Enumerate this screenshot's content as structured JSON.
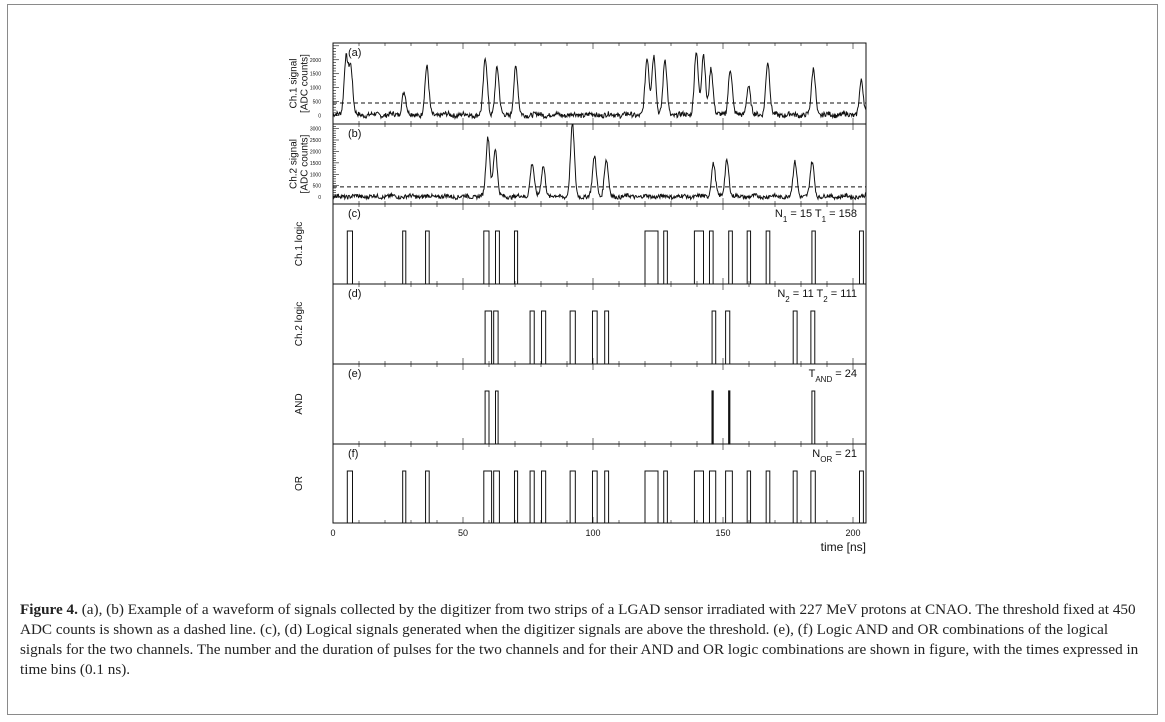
{
  "caption": {
    "label": "Figure 4.",
    "text": " (a), (b) Example of a waveform of signals collected by the digitizer from two strips of a LGAD sensor irradiated with 227 MeV protons at CNAO. The threshold fixed at 450 ADC counts is shown as a dashed line. (c), (d) Logical signals generated when the digitizer signals are above the threshold. (e), (f) Logic AND and OR combinations of the logical signals for the two channels. The number and the duration of pulses for the two channels and for their AND and OR logic combinations are shown in figure, with the times expressed in time bins (0.1 ns)."
  },
  "chart_data": {
    "type": "line",
    "xlabel": "time [ns]",
    "xlim": [
      0,
      205
    ],
    "x_ticks": [
      0,
      50,
      100,
      150,
      200
    ],
    "threshold": 450,
    "panels": [
      {
        "id": "a",
        "tag": "(a)",
        "kind": "waveform",
        "ylabel": [
          "Ch.1 signal",
          "[ADC counts]"
        ],
        "ylim": [
          -300,
          2600
        ],
        "y_ticks": [
          0,
          500,
          1000,
          1500,
          2000
        ],
        "baseline": 30,
        "peaks": [
          [
            5,
            2050
          ],
          [
            6.8,
            1700
          ],
          [
            27.3,
            850
          ],
          [
            36.1,
            1700
          ],
          [
            58.6,
            2000
          ],
          [
            63.1,
            1700
          ],
          [
            70.3,
            1700
          ],
          [
            120.8,
            2000
          ],
          [
            123.4,
            2150
          ],
          [
            127.7,
            1950
          ],
          [
            139.7,
            2250
          ],
          [
            142.5,
            2150
          ],
          [
            145.4,
            1700
          ],
          [
            152.8,
            1650
          ],
          [
            159.8,
            1050
          ],
          [
            167.2,
            1900
          ],
          [
            184.8,
            1650
          ],
          [
            203.2,
            1200
          ]
        ]
      },
      {
        "id": "b",
        "tag": "(b)",
        "kind": "waveform",
        "ylabel": [
          "Ch.2 signal",
          "[ADC counts]"
        ],
        "ylim": [
          -300,
          3200
        ],
        "y_ticks": [
          0,
          500,
          1000,
          1500,
          2000,
          2500,
          3000
        ],
        "baseline": 30,
        "peaks": [
          [
            59.6,
            2600
          ],
          [
            62.4,
            2100
          ],
          [
            76.6,
            1450
          ],
          [
            80.9,
            1350
          ],
          [
            92.1,
            3150
          ],
          [
            100.6,
            1750
          ],
          [
            105.1,
            1600
          ],
          [
            146.3,
            1450
          ],
          [
            151.5,
            1600
          ],
          [
            177.7,
            1500
          ],
          [
            184.3,
            1500
          ]
        ]
      },
      {
        "id": "c",
        "tag": "(c)",
        "kind": "logic",
        "ylabel": [
          "Ch.1 logic"
        ],
        "annotation": [
          "N",
          "1",
          " = 15   T",
          "1",
          " = 158"
        ],
        "pulses": [
          [
            5.5,
            7.5
          ],
          [
            26.8,
            28.0
          ],
          [
            35.6,
            37.0
          ],
          [
            58.0,
            60.0
          ],
          [
            62.5,
            64.0
          ],
          [
            69.8,
            71.0
          ],
          [
            120.0,
            125.0
          ],
          [
            127.2,
            128.6
          ],
          [
            139.0,
            142.5
          ],
          [
            144.8,
            146.2
          ],
          [
            152.2,
            153.6
          ],
          [
            159.3,
            160.6
          ],
          [
            166.6,
            168.0
          ],
          [
            184.2,
            185.5
          ],
          [
            202.5,
            204.0
          ]
        ]
      },
      {
        "id": "d",
        "tag": "(d)",
        "kind": "logic",
        "ylabel": [
          "Ch.2 logic"
        ],
        "annotation": [
          "N",
          "2",
          " = 11   T",
          "2",
          " = 111"
        ],
        "pulses": [
          [
            58.5,
            61.0
          ],
          [
            61.8,
            63.5
          ],
          [
            75.8,
            77.4
          ],
          [
            80.2,
            81.8
          ],
          [
            91.2,
            93.2
          ],
          [
            99.8,
            101.6
          ],
          [
            104.5,
            106.0
          ],
          [
            145.8,
            147.2
          ],
          [
            151.0,
            152.6
          ],
          [
            177.0,
            178.5
          ],
          [
            183.8,
            185.3
          ]
        ]
      },
      {
        "id": "e",
        "tag": "(e)",
        "kind": "logic",
        "ylabel": [
          "AND"
        ],
        "annotation": [
          "T",
          "AND",
          " = 24"
        ],
        "pulses": [
          [
            58.5,
            60.0
          ],
          [
            62.5,
            63.5
          ],
          [
            145.8,
            146.2
          ],
          [
            152.2,
            152.6
          ],
          [
            184.2,
            185.3
          ]
        ]
      },
      {
        "id": "f",
        "tag": "(f)",
        "kind": "logic",
        "ylabel": [
          "OR"
        ],
        "annotation": [
          "N",
          "OR",
          " = 21"
        ],
        "pulses": [
          [
            5.5,
            7.5
          ],
          [
            26.8,
            28.0
          ],
          [
            35.6,
            37.0
          ],
          [
            58.0,
            61.0
          ],
          [
            61.8,
            64.0
          ],
          [
            69.8,
            71.0
          ],
          [
            75.8,
            77.4
          ],
          [
            80.2,
            81.8
          ],
          [
            91.2,
            93.2
          ],
          [
            99.8,
            101.6
          ],
          [
            104.5,
            106.0
          ],
          [
            120.0,
            125.0
          ],
          [
            127.2,
            128.6
          ],
          [
            139.0,
            142.5
          ],
          [
            144.8,
            147.2
          ],
          [
            151.0,
            153.6
          ],
          [
            159.3,
            160.6
          ],
          [
            166.6,
            168.0
          ],
          [
            177.0,
            178.5
          ],
          [
            183.8,
            185.5
          ],
          [
            202.5,
            204.0
          ]
        ]
      }
    ]
  }
}
